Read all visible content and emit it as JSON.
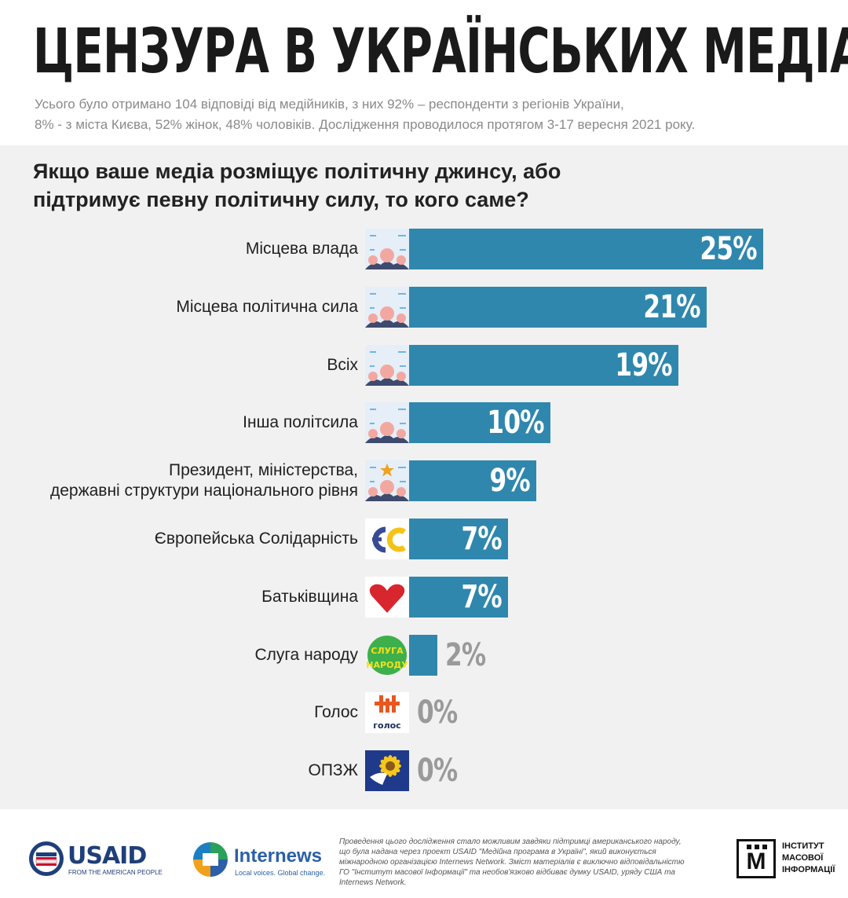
{
  "header": {
    "title": "ЦЕНЗУРА В УКРАЇНСЬКИХ МЕДІА",
    "subtitle_line1": "Усього було отримано 104 відповіді від медійників, з них 92% – респонденти з регіонів України,",
    "subtitle_line2": "8% - з міста Києва, 52% жінок, 48% чоловіків. Дослідження проводилося протягом 3-17 вересня 2021 року."
  },
  "question_line1": "Якщо ваше медіа розміщує політичну джинсу, або",
  "question_line2": "підтримує певну політичну силу, то кого саме?",
  "chart_data": {
    "type": "bar",
    "orientation": "horizontal",
    "categories": [
      "Місцева влада",
      "Місцева політична сила",
      "Всіх",
      "Інша політсила",
      "Президент, міністерства, державні структури національного рівня",
      "Європейська Солідарність",
      "Батьківщина",
      "Слуга народу",
      "Голос",
      "ОПЗЖ"
    ],
    "values": [
      25,
      21,
      19,
      10,
      9,
      7,
      7,
      2,
      0,
      0
    ],
    "value_labels": [
      "25%",
      "21%",
      "19%",
      "10%",
      "9%",
      "7%",
      "7%",
      "2%",
      "0%",
      "0%"
    ],
    "label_lines": [
      [
        "Місцева влада"
      ],
      [
        "Місцева політична сила"
      ],
      [
        "Всіх"
      ],
      [
        "Інша політсила"
      ],
      [
        "Президент, міністерства,",
        "державні структури національного рівня"
      ],
      [
        "Європейська Солідарність"
      ],
      [
        "Батьківщина"
      ],
      [
        "Слуга народу"
      ],
      [
        "Голос"
      ],
      [
        "ОПЗЖ"
      ]
    ],
    "icons": [
      "people-icon",
      "people-icon",
      "people-icon",
      "people-icon",
      "people-star-icon",
      "es-party-logo",
      "batkivshchyna-heart-logo",
      "sluha-narodu-logo",
      "holos-logo",
      "opzzh-logo"
    ],
    "icon_texts": {
      "es": "ЄС",
      "sluha": [
        "СЛУГА",
        "НАРОДУ"
      ],
      "holos": "голос"
    },
    "bar_color": "#2f87ad",
    "xlim": [
      0,
      25
    ],
    "grid": false,
    "legend": "none"
  },
  "footer": {
    "usaid_name": "USAID",
    "usaid_tagline": "FROM THE AMERICAN PEOPLE",
    "internews_name": "Internews",
    "internews_tagline": "Local voices. Global change.",
    "note": "Проведення цього дослідження стало можливим завдяки підтримці американського народу, що була надана через проект USAID \"Медійна програма в Україні\", який виконується міжнародною організацією Internews Network. Зміст матеріалів є виключно відповідальністю ГО \"Інститут масової Інформації\" та необов'язково відбиває думку USAID, уряду США та Internews Network.",
    "imi_letter": "М",
    "imi_line1": "ІНСТИТУТ",
    "imi_line2": "МАСОВОЇ",
    "imi_line3": "ІНФОРМАЦІЇ"
  },
  "colors": {
    "bar": "#2f87ad",
    "panel_bg": "#f1f1f1",
    "value_outside": "#9a9a9a",
    "usaid_blue": "#1f3f7a",
    "usaid_red": "#c8102e",
    "internews_blue": "#2b5fa8"
  }
}
